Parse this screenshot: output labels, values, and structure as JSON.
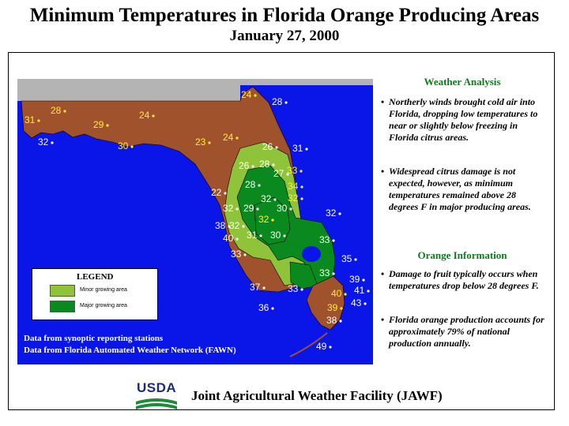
{
  "title": "Minimum Temperatures in Florida Orange Producing Areas",
  "subtitle": "January 27, 2000",
  "legend": {
    "title": "LEGEND",
    "items": [
      {
        "label": "Minor growing area",
        "color": "#8fc43a"
      },
      {
        "label": "Major growing area",
        "color": "#0a8a1e"
      }
    ]
  },
  "sources": [
    "Data from synoptic reporting stations",
    "Data from Florida Automated Weather Network (FAWN)"
  ],
  "weather_analysis": {
    "heading": "Weather Analysis",
    "bullets": [
      "Northerly winds brought cold air into Florida, dropping low temperatures to near or slightly below freezing in Florida citrus areas.",
      "Widespread citrus damage is not expected, however, as minimum temperatures remained above 28 degrees F in major producing areas."
    ]
  },
  "orange_information": {
    "heading": "Orange Information",
    "bullets": [
      "Damage to fruit typically occurs when temperatures drop below 28 degrees F.",
      "Florida orange production accounts for approximately 79% of national production annually."
    ]
  },
  "footer": {
    "agency_logo": "USDA",
    "facility": "Joint Agricultural Weather Facility (JAWF)"
  },
  "colors": {
    "water": "#0a16e8",
    "land_non_growing": "#a0522d",
    "neighbor_states": "#b4b4b4",
    "minor_area": "#8fc43a",
    "major_area": "#0a8a1e"
  },
  "temperature_readings": [
    {
      "value": "31",
      "yellow": true
    },
    {
      "value": "28",
      "yellow": true
    },
    {
      "value": "32",
      "yellow": false
    },
    {
      "value": "29",
      "yellow": true
    },
    {
      "value": "24",
      "yellow": true
    },
    {
      "value": "30",
      "yellow": true
    },
    {
      "value": "24",
      "yellow": true
    },
    {
      "value": "28",
      "yellow": false
    },
    {
      "value": "23",
      "yellow": true
    },
    {
      "value": "24",
      "yellow": true
    },
    {
      "value": "26",
      "yellow": false
    },
    {
      "value": "31",
      "yellow": false
    },
    {
      "value": "26",
      "yellow": false
    },
    {
      "value": "28",
      "yellow": false
    },
    {
      "value": "27",
      "yellow": false
    },
    {
      "value": "33",
      "yellow": true
    },
    {
      "value": "28",
      "yellow": false
    },
    {
      "value": "34",
      "yellow": true
    },
    {
      "value": "32",
      "yellow": false
    },
    {
      "value": "32",
      "yellow": true
    },
    {
      "value": "22",
      "yellow": false
    },
    {
      "value": "29",
      "yellow": false
    },
    {
      "value": "30",
      "yellow": false
    },
    {
      "value": "32",
      "yellow": false
    },
    {
      "value": "32",
      "yellow": true
    },
    {
      "value": "38",
      "yellow": false
    },
    {
      "value": "32",
      "yellow": false
    },
    {
      "value": "40",
      "yellow": false
    },
    {
      "value": "31",
      "yellow": false
    },
    {
      "value": "30",
      "yellow": false
    },
    {
      "value": "33",
      "yellow": false
    },
    {
      "value": "32",
      "yellow": false
    },
    {
      "value": "33",
      "yellow": false
    },
    {
      "value": "35",
      "yellow": false
    },
    {
      "value": "33",
      "yellow": false
    },
    {
      "value": "37",
      "yellow": false
    },
    {
      "value": "33",
      "yellow": false
    },
    {
      "value": "36",
      "yellow": false
    },
    {
      "value": "39",
      "yellow": false
    },
    {
      "value": "40",
      "yellow": true
    },
    {
      "value": "41",
      "yellow": false
    },
    {
      "value": "39",
      "yellow": true
    },
    {
      "value": "43",
      "yellow": false
    },
    {
      "value": "38",
      "yellow": false
    },
    {
      "value": "49",
      "yellow": false
    }
  ]
}
